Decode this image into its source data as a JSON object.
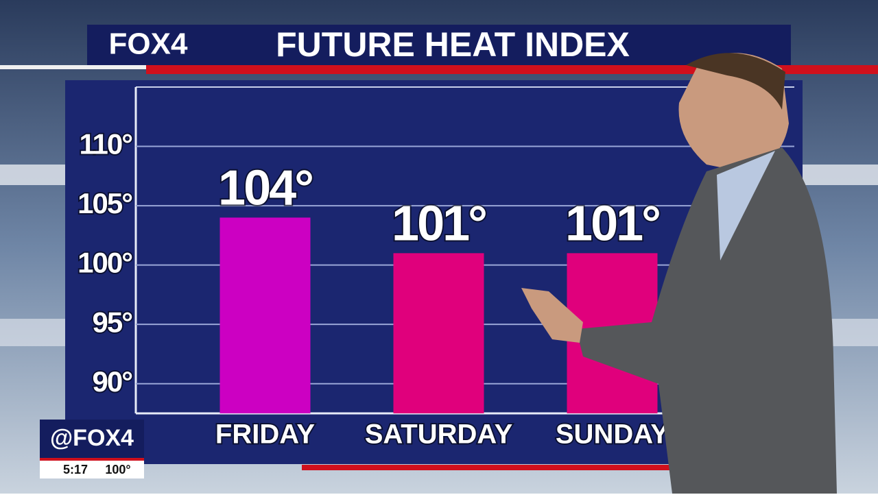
{
  "chart_data": {
    "type": "bar",
    "title": "FUTURE HEAT INDEX",
    "categories": [
      "Friday",
      "Saturday",
      "Sunday"
    ],
    "values": [
      104,
      101,
      101
    ],
    "value_labels": [
      "104°",
      "101°",
      "101°"
    ],
    "colors": [
      "#cc00c2",
      "#e0007c",
      "#e0007c"
    ],
    "ylim": [
      87.5,
      115
    ],
    "yticks": [
      {
        "value": 90,
        "label": "90°"
      },
      {
        "value": 95,
        "label": "95°"
      },
      {
        "value": 100,
        "label": "100°"
      },
      {
        "value": 105,
        "label": "105°"
      },
      {
        "value": 110,
        "label": "110°"
      }
    ],
    "grid": true
  },
  "branding": {
    "logo": "FOX4",
    "handle": "@FOX4",
    "time": "5:17",
    "temperature": "100°"
  }
}
